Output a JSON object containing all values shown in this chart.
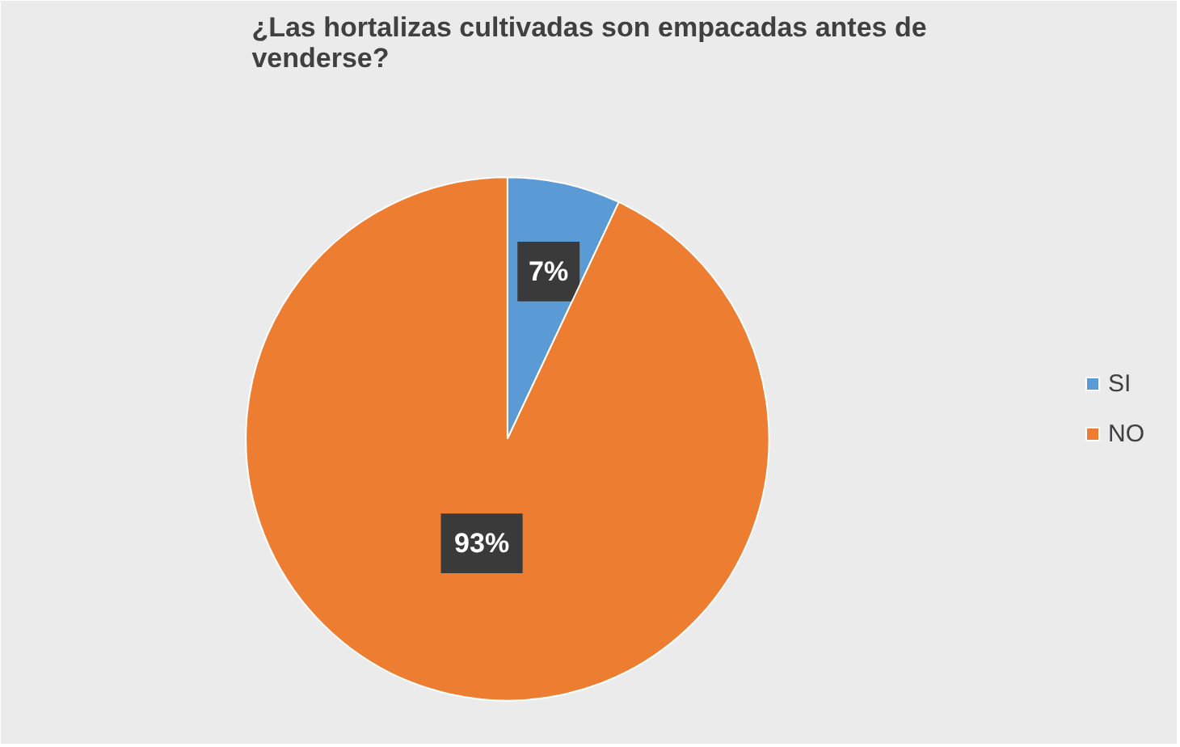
{
  "chart_data": {
    "type": "pie",
    "title": "¿Las hortalizas cultivadas son empacadas antes de venderse?",
    "categories": [
      "SI",
      "NO"
    ],
    "values": [
      7,
      93
    ],
    "colors": [
      "#5b9bd5",
      "#ed7d31"
    ],
    "value_labels": [
      "7%",
      "93%"
    ],
    "legend": "right"
  }
}
